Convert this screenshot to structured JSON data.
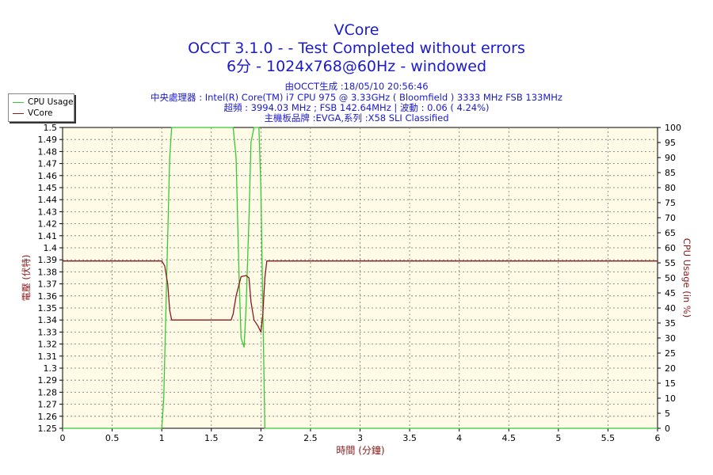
{
  "header": {
    "title": "VCore",
    "line2": "OCCT 3.1.0 -  - Test Completed without errors",
    "line3": "6分 - 1024x768@60Hz - windowed"
  },
  "info": {
    "generated": "由OCCT生成 :18/05/10 20:56:46",
    "cpu": "中央處理器 : Intel(R) Core(TM) i7 CPU 975 @ 3.33GHz ( Bloomfield ) 3333 MHz FSB 133MHz",
    "oc": "超頻 : 3994.03 MHz ; FSB 142.64MHz | 波動 : 0.06 ( 4.24%)",
    "board": "主機板品牌 :EVGA,系列 :X58 SLI Classified"
  },
  "colors": {
    "cpu": "#33cc33",
    "vcore": "#8b1a1a",
    "bg": "#fffbe6",
    "text": "#1a1ad0",
    "axis_label": "#8b1a1a"
  },
  "chart_data": {
    "type": "line",
    "xlabel": "時間 (分鐘)",
    "ylabel": "電壓 (伏特)",
    "y2label": "CPU Usage (in %)",
    "xlim": [
      0,
      6
    ],
    "ylim": [
      1.25,
      1.5
    ],
    "y2lim": [
      0,
      100
    ],
    "x_ticks": [
      "0",
      "0.5",
      "1",
      "1.5",
      "2",
      "2.5",
      "3",
      "3.5",
      "4",
      "4.5",
      "5",
      "5.5",
      "6"
    ],
    "y_ticks": [
      "1.25",
      "1.26",
      "1.27",
      "1.28",
      "1.29",
      "1.3",
      "1.31",
      "1.32",
      "1.33",
      "1.34",
      "1.35",
      "1.36",
      "1.37",
      "1.38",
      "1.39",
      "1.4",
      "1.41",
      "1.42",
      "1.43",
      "1.44",
      "1.45",
      "1.46",
      "1.47",
      "1.48",
      "1.49",
      "1.5"
    ],
    "y2_ticks": [
      "0",
      "5",
      "10",
      "15",
      "20",
      "25",
      "30",
      "35",
      "40",
      "45",
      "50",
      "55",
      "60",
      "65",
      "70",
      "75",
      "80",
      "85",
      "90",
      "95",
      "100"
    ],
    "grid": true,
    "legend_position": "top-left",
    "series": [
      {
        "name": "CPU Usage",
        "axis": "right",
        "points": [
          [
            0,
            0
          ],
          [
            0.98,
            0
          ],
          [
            1.0,
            0
          ],
          [
            1.02,
            10
          ],
          [
            1.05,
            50
          ],
          [
            1.08,
            90
          ],
          [
            1.1,
            100
          ],
          [
            1.3,
            100
          ],
          [
            1.5,
            100
          ],
          [
            1.72,
            100
          ],
          [
            1.75,
            90
          ],
          [
            1.78,
            50
          ],
          [
            1.8,
            30
          ],
          [
            1.83,
            27
          ],
          [
            1.85,
            40
          ],
          [
            1.88,
            70
          ],
          [
            1.9,
            95
          ],
          [
            1.93,
            100
          ],
          [
            1.98,
            100
          ],
          [
            2.0,
            80
          ],
          [
            2.02,
            40
          ],
          [
            2.04,
            0
          ],
          [
            6,
            0
          ]
        ]
      },
      {
        "name": "VCore",
        "axis": "left",
        "points": [
          [
            0,
            1.389
          ],
          [
            1.0,
            1.389
          ],
          [
            1.03,
            1.385
          ],
          [
            1.06,
            1.37
          ],
          [
            1.08,
            1.348
          ],
          [
            1.1,
            1.34
          ],
          [
            1.2,
            1.34
          ],
          [
            1.4,
            1.34
          ],
          [
            1.6,
            1.34
          ],
          [
            1.7,
            1.34
          ],
          [
            1.72,
            1.345
          ],
          [
            1.75,
            1.36
          ],
          [
            1.8,
            1.376
          ],
          [
            1.85,
            1.377
          ],
          [
            1.88,
            1.375
          ],
          [
            1.9,
            1.355
          ],
          [
            1.93,
            1.34
          ],
          [
            1.97,
            1.335
          ],
          [
            2.0,
            1.33
          ],
          [
            2.02,
            1.345
          ],
          [
            2.04,
            1.375
          ],
          [
            2.06,
            1.389
          ],
          [
            6,
            1.389
          ]
        ]
      }
    ]
  }
}
